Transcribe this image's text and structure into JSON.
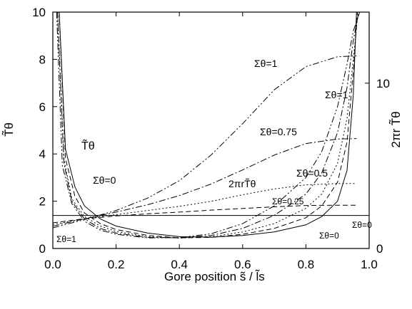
{
  "chart_data": {
    "type": "line",
    "xlabel": "Gore position s̃ / l̃s",
    "ylabel_left": "T̃θ",
    "ylabel_right": "2πr T̃θ",
    "xlim": [
      0,
      1
    ],
    "ylim_left": [
      0,
      10
    ],
    "ylim_right": [
      0,
      14.3
    ],
    "x_ticks": [
      "0.0",
      "0.2",
      "0.4",
      "0.6",
      "0.8",
      "1.0"
    ],
    "y_ticks_left": [
      "0",
      "2",
      "4",
      "6",
      "8",
      "10"
    ],
    "y_ticks_right": [
      "0",
      "10"
    ],
    "annotations": {
      "tt_label": "T̃θ",
      "two_pi_label": "2πrT̃θ",
      "s0_left": "Σθ=0",
      "s1_left": "Σθ=1",
      "s1_top": "Σθ=1",
      "s1_right": "Σθ=1",
      "s075": "Σθ=0.75",
      "s05": "Σθ=0.5",
      "s025": "Σθ=0.25",
      "s0_right_upper": "Σθ=0",
      "s0_right_lower": "Σθ=0"
    },
    "series": [
      {
        "group": "T",
        "sigma": 0,
        "style": "solid",
        "x": [
          0.02,
          0.04,
          0.07,
          0.1,
          0.15,
          0.2,
          0.3,
          0.4,
          0.5,
          0.6,
          0.7,
          0.8,
          0.85,
          0.9,
          0.93,
          0.95,
          0.96
        ],
        "y": [
          10,
          4.2,
          2.6,
          1.8,
          1.25,
          0.95,
          0.65,
          0.5,
          0.48,
          0.55,
          0.7,
          1.0,
          1.35,
          2.0,
          3.3,
          6.5,
          10
        ]
      },
      {
        "group": "T",
        "sigma": 0.25,
        "style": "dash",
        "x": [
          0.02,
          0.04,
          0.07,
          0.1,
          0.15,
          0.2,
          0.3,
          0.4,
          0.5,
          0.6,
          0.7,
          0.8,
          0.85,
          0.9,
          0.93,
          0.95,
          0.963
        ],
        "y": [
          10,
          3.8,
          2.2,
          1.5,
          1.05,
          0.8,
          0.55,
          0.45,
          0.47,
          0.6,
          0.85,
          1.3,
          1.8,
          2.8,
          4.5,
          7.5,
          10
        ]
      },
      {
        "group": "T",
        "sigma": 0.5,
        "style": "dot",
        "x": [
          0.015,
          0.035,
          0.06,
          0.1,
          0.15,
          0.2,
          0.3,
          0.4,
          0.5,
          0.6,
          0.7,
          0.8,
          0.85,
          0.9,
          0.93,
          0.95,
          0.965
        ],
        "y": [
          10,
          3.8,
          2.1,
          1.35,
          0.95,
          0.72,
          0.5,
          0.44,
          0.5,
          0.7,
          1.05,
          1.7,
          2.3,
          3.6,
          5.5,
          8.0,
          10
        ]
      },
      {
        "group": "T",
        "sigma": 0.75,
        "style": "dashdot",
        "x": [
          0.015,
          0.035,
          0.06,
          0.1,
          0.15,
          0.2,
          0.3,
          0.4,
          0.5,
          0.6,
          0.7,
          0.8,
          0.85,
          0.9,
          0.93,
          0.95,
          0.967
        ],
        "y": [
          10,
          3.6,
          2.0,
          1.25,
          0.85,
          0.65,
          0.47,
          0.45,
          0.55,
          0.85,
          1.4,
          2.3,
          3.2,
          4.9,
          6.8,
          8.8,
          10
        ]
      },
      {
        "group": "T",
        "sigma": 1,
        "style": "dashdotdot",
        "x": [
          0.012,
          0.03,
          0.06,
          0.1,
          0.15,
          0.2,
          0.3,
          0.4,
          0.5,
          0.6,
          0.7,
          0.8,
          0.85,
          0.9,
          0.93,
          0.95,
          0.97
        ],
        "y": [
          10,
          3.5,
          1.9,
          1.15,
          0.78,
          0.6,
          0.45,
          0.46,
          0.62,
          1.05,
          1.8,
          3.0,
          4.1,
          6.0,
          7.8,
          9.2,
          10
        ]
      },
      {
        "group": "2piRT",
        "sigma": 0,
        "style": "solid",
        "x": [
          0.0,
          0.2,
          0.4,
          0.6,
          0.8,
          1.0
        ],
        "y": [
          2.0,
          2.0,
          2.0,
          2.0,
          2.0,
          2.0
        ]
      },
      {
        "group": "2piRT",
        "sigma": 0.25,
        "style": "dash",
        "x": [
          0.0,
          0.1,
          0.2,
          0.3,
          0.4,
          0.5,
          0.6,
          0.7,
          0.8,
          0.9,
          0.96
        ],
        "y": [
          1.55,
          1.8,
          1.97,
          2.1,
          2.2,
          2.32,
          2.42,
          2.52,
          2.6,
          2.62,
          2.62
        ]
      },
      {
        "group": "2piRT",
        "sigma": 0.5,
        "style": "dot",
        "x": [
          0.0,
          0.1,
          0.2,
          0.3,
          0.4,
          0.5,
          0.6,
          0.7,
          0.8,
          0.9,
          0.96
        ],
        "y": [
          1.45,
          1.8,
          2.05,
          2.3,
          2.55,
          2.85,
          3.25,
          3.6,
          3.85,
          3.93,
          3.93
        ]
      },
      {
        "group": "2piRT",
        "sigma": 0.75,
        "style": "dashdot",
        "x": [
          0.0,
          0.1,
          0.2,
          0.3,
          0.4,
          0.5,
          0.6,
          0.7,
          0.8,
          0.9,
          0.96
        ],
        "y": [
          1.35,
          1.8,
          2.2,
          2.65,
          3.2,
          3.9,
          4.75,
          5.65,
          6.35,
          6.62,
          6.65
        ]
      },
      {
        "group": "2piRT",
        "sigma": 1,
        "style": "dashdotdot",
        "x": [
          0.0,
          0.1,
          0.2,
          0.3,
          0.4,
          0.5,
          0.6,
          0.7,
          0.8,
          0.9,
          0.96
        ],
        "y": [
          1.25,
          1.75,
          2.3,
          3.05,
          4.1,
          5.65,
          7.55,
          9.6,
          11.0,
          11.6,
          11.65
        ]
      }
    ]
  }
}
